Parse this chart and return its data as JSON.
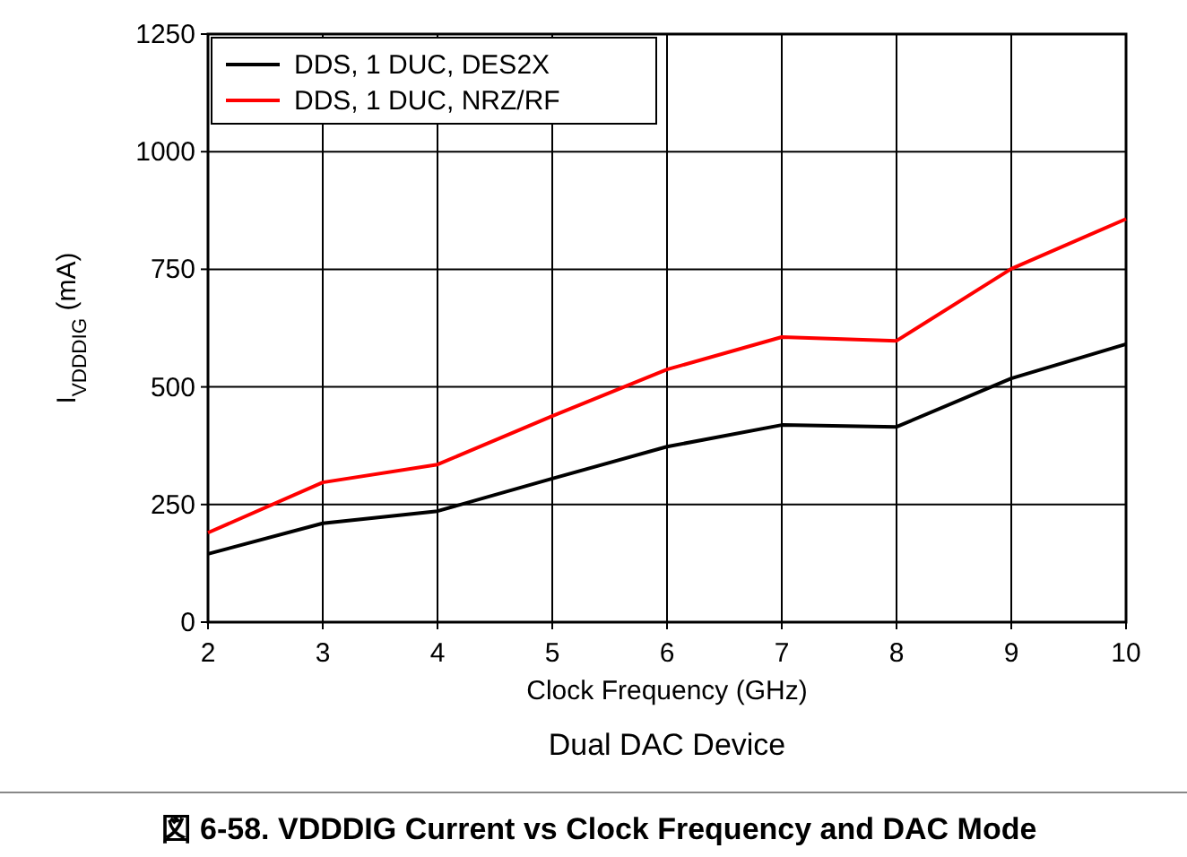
{
  "chart_data": {
    "type": "line",
    "title": "図 6-58. VDDDIG Current vs Clock Frequency and DAC Mode",
    "xlabel": "Clock Frequency (GHz)",
    "ylabel": "I$_{VDDDIG}$ (mA)",
    "annotations": [
      "Dual DAC Device"
    ],
    "x": [
      2,
      3,
      4,
      5,
      6,
      7,
      8,
      9,
      10
    ],
    "series": [
      {
        "name": "DDS, 1 DUC, DES2X",
        "color": "#000000",
        "values": [
          145,
          210,
          236,
          305,
          373,
          419,
          415,
          518,
          591
        ]
      },
      {
        "name": "DDS, 1 DUC, NRZ/RF",
        "color": "#ff0000",
        "values": [
          190,
          297,
          335,
          438,
          537,
          606,
          598,
          751,
          857
        ]
      }
    ],
    "xlim": [
      2,
      10
    ],
    "xticks": [
      2,
      3,
      4,
      5,
      6,
      7,
      8,
      9,
      10
    ],
    "ylim": [
      0,
      1250
    ],
    "yticks": [
      0,
      250,
      500,
      750,
      1000,
      1250
    ],
    "grid": true,
    "legend": "top left",
    "marker": "none",
    "line_style": "solid"
  }
}
